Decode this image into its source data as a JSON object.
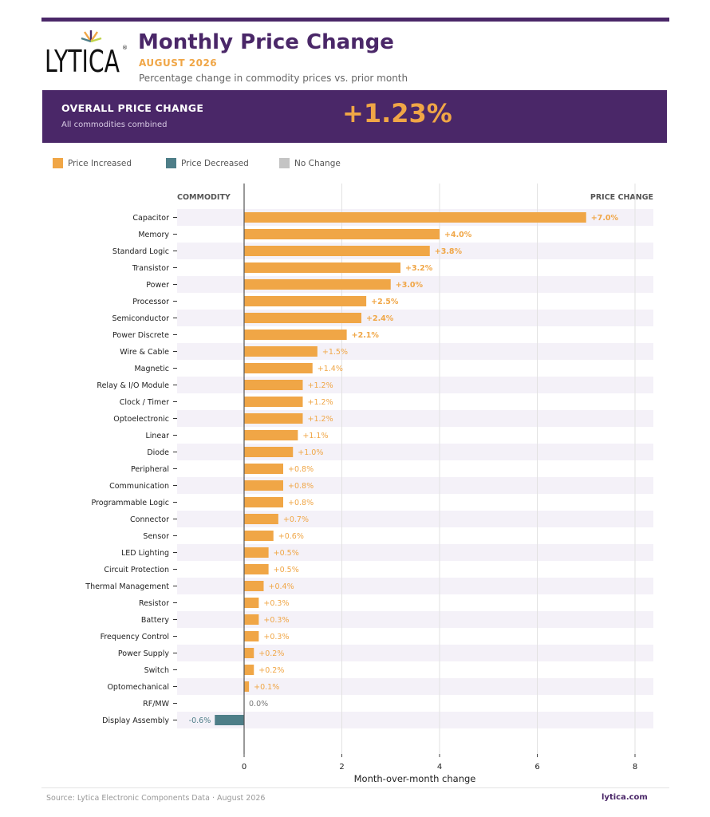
{
  "header": {
    "logo_text": "LYTICA",
    "title": "Monthly Price Change",
    "subtitle": "AUGUST 2026",
    "description": "Percentage change in commodity prices vs. prior month"
  },
  "banner": {
    "label": "OVERALL PRICE CHANGE",
    "sublabel": "All commodities combined",
    "value": "+1.23%"
  },
  "legend": [
    {
      "label": "Price Increased",
      "color": "#f0a646"
    },
    {
      "label": "Price Decreased",
      "color": "#4e7e88"
    },
    {
      "label": "No Change",
      "color": "#c4c4c4"
    }
  ],
  "chart_data": {
    "type": "bar",
    "orientation": "horizontal",
    "column_headers": {
      "left": "COMMODITY",
      "right": "PRICE CHANGE"
    },
    "xlabel": "Month-over-month change",
    "xlim": [
      -1.2,
      8.4
    ],
    "xticks": [
      0,
      2,
      4,
      6,
      8
    ],
    "categories": [
      "Capacitor",
      "Memory",
      "Standard Logic",
      "Transistor",
      "Power",
      "Processor",
      "Semiconductor",
      "Power Discrete",
      "Wire & Cable",
      "Magnetic",
      "Relay & I/O Module",
      "Clock / Timer",
      "Optoelectronic",
      "Linear",
      "Diode",
      "Peripheral",
      "Communication",
      "Programmable Logic",
      "Connector",
      "Sensor",
      "LED Lighting",
      "Circuit Protection",
      "Thermal Management",
      "Resistor",
      "Battery",
      "Frequency Control",
      "Power Supply",
      "Switch",
      "Optomechanical",
      "RF/MW",
      "Display Assembly"
    ],
    "values": [
      7.0,
      4.0,
      3.8,
      3.2,
      3.0,
      2.5,
      2.4,
      2.1,
      1.5,
      1.4,
      1.2,
      1.2,
      1.2,
      1.1,
      1.0,
      0.8,
      0.8,
      0.8,
      0.7,
      0.6,
      0.5,
      0.5,
      0.4,
      0.3,
      0.3,
      0.3,
      0.2,
      0.2,
      0.1,
      0.0,
      -0.6
    ],
    "value_labels": [
      "+7.0%",
      "+4.0%",
      "+3.8%",
      "+3.2%",
      "+3.0%",
      "+2.5%",
      "+2.4%",
      "+2.1%",
      "+1.5%",
      "+1.4%",
      "+1.2%",
      "+1.2%",
      "+1.2%",
      "+1.1%",
      "+1.0%",
      "+0.8%",
      "+0.8%",
      "+0.8%",
      "+0.7%",
      "+0.6%",
      "+0.5%",
      "+0.5%",
      "+0.4%",
      "+0.3%",
      "+0.3%",
      "+0.3%",
      "+0.2%",
      "+0.2%",
      "+0.1%",
      "0.0%",
      "-0.6%"
    ],
    "colors": {
      "increase": "#f0a646",
      "decrease": "#4e7e88",
      "none": "#c4c4c4"
    },
    "grid": true
  },
  "footer": {
    "source": "Source: Lytica Electronic Components Data  ·  August 2026",
    "site": "lytica.com"
  }
}
